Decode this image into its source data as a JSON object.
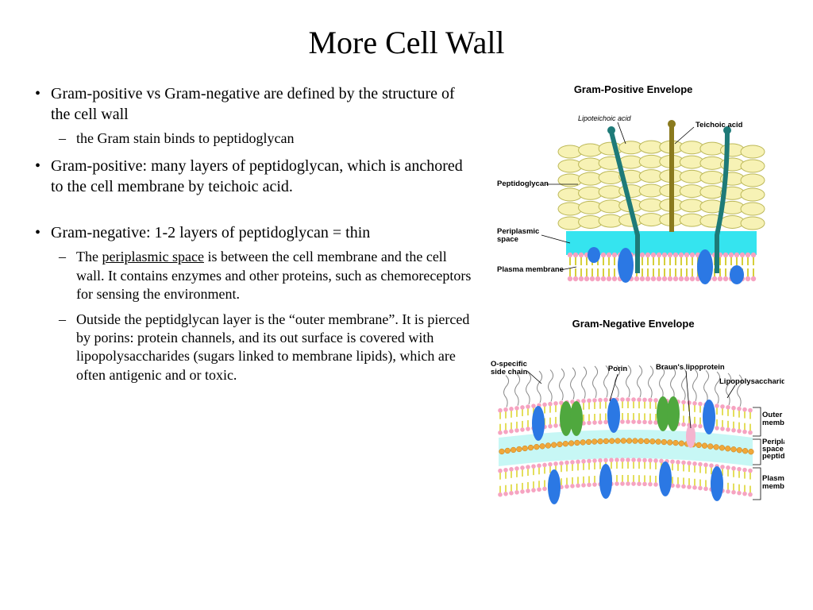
{
  "title": "More Cell Wall",
  "bullets": {
    "b1": "Gram-positive vs Gram-negative are defined by the structure of the cell wall",
    "b1_sub1": "the Gram stain binds to peptidoglycan",
    "b2": "Gram-positive: many layers of peptidoglycan, which is anchored to the cell membrane by teichoic acid.",
    "b3": "Gram-negative: 1-2 layers of  peptidoglycan = thin",
    "b3_sub1_pre": "The ",
    "b3_sub1_u": "periplasmic space",
    "b3_sub1_post": " is between the cell membrane and the cell wall. It contains enzymes and other proteins, such as chemoreceptors for sensing the environment.",
    "b3_sub2": "Outside the peptidglycan layer is the “outer membrane”. It is pierced by porins: protein channels, and its out surface is covered with lipopolysaccharides (sugars linked to membrane lipids), which are often antigenic and or toxic."
  },
  "diagram_pos": {
    "title": "Gram-Positive Envelope",
    "labels": {
      "lipoteichoic": "Lipoteichoic acid",
      "teichoic": "Teichoic acid",
      "peptidoglycan": "Peptidoglycan",
      "periplasmic": "Periplasmic\nspace",
      "plasma": "Plasma membrane"
    },
    "colors": {
      "glycan_fill": "#f7f2b5",
      "glycan_stroke": "#bcb858",
      "periplasm": "#35e4ef",
      "lipid_head": "#f6a3c1",
      "lipid_tail": "#d6cf3a",
      "teichoic": "#8a7a1e",
      "lipoteichoic": "#1e7a78",
      "protein_blue": "#2b78e4"
    }
  },
  "diagram_neg": {
    "title": "Gram-Negative Envelope",
    "labels": {
      "ospecific": "O-specific\nside chain",
      "porin": "Porin",
      "braun": "Braun's lipoprotein",
      "lps": "Lipopolysaccharide",
      "outer": "Outer\nmembrane",
      "periplasm": "Periplasmic\nspace and\npeptidoglycan",
      "plasma": "Plasma\nmembrane"
    },
    "colors": {
      "periplasm": "#c7f7f5",
      "lipid_head": "#f6a3c1",
      "lipid_tail": "#e1db4a",
      "glycan": "#f0a83a",
      "porin": "#4fa83e",
      "protein_blue": "#2b78e4",
      "braun": "#f4b4cf",
      "lps": "#888888"
    }
  }
}
